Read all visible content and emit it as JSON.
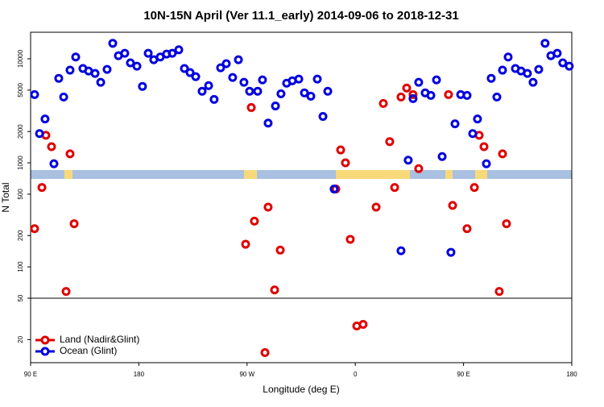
{
  "chart_data": {
    "type": "scatter",
    "title": "10N-15N April (Ver 11.1_early)   2014-09-06 to 2018-12-31",
    "x_label": "Longitude (deg E)",
    "y_label": "N Total",
    "xlim": [
      90,
      540
    ],
    "xticks": [
      {
        "value": 90,
        "label": "90 E"
      },
      180,
      {
        "value": 270,
        "label": "90 W"
      },
      {
        "value": 360,
        "label": "0"
      },
      {
        "value": 450,
        "label": "90 E"
      },
      {
        "value": 540,
        "label": "180"
      }
    ],
    "ylim": [
      12,
      18000
    ],
    "yticks": [
      20,
      50,
      100,
      200,
      500,
      1000,
      2000,
      5000,
      10000
    ],
    "log_y": true,
    "separator_y": 50,
    "legend": "bottom-left",
    "series": [
      {
        "name": "Land (Nadir&Glint)",
        "color": "#e00000",
        "x": [
          93.3,
          99.4,
          102.7,
          107.4,
          119.5,
          122.8,
          126.2,
          268.8,
          273.5,
          276.1,
          287.5,
          292.9,
          297.6,
          284.9,
          343.8,
          347.8,
          351.8,
          355.8,
          361.2,
          366.5,
          377.3,
          383.3,
          388.6,
          392.7,
          398,
          402.7,
          408,
          412.7,
          437.5,
          440.9,
          452.9,
          459,
          463,
          467,
          479.7,
          482.4,
          485.7
        ],
        "values": [
          233,
          580,
          1840,
          1430,
          58,
          1220,
          260,
          165,
          3400,
          275,
          375,
          60,
          145,
          15,
          560,
          1330,
          1000,
          184,
          27,
          28,
          375,
          3720,
          1600,
          580,
          4290,
          5230,
          4530,
          880,
          4530,
          390,
          233,
          580,
          1840,
          1430,
          58,
          1220,
          260
        ]
      },
      {
        "name": "Ocean (Glint)",
        "color": "#0000e0",
        "x": [
          93.3,
          97.4,
          102,
          109.4,
          113.4,
          117.5,
          122.8,
          127.5,
          133.5,
          138.2,
          143.6,
          148.3,
          153.6,
          158.3,
          163,
          168.3,
          173,
          178.4,
          183,
          187.8,
          192.4,
          197.8,
          203.1,
          207.8,
          213.2,
          217.9,
          222.6,
          227.3,
          232.6,
          238,
          242.6,
          248,
          252.7,
          258,
          262.8,
          267.4,
          272.1,
          278.8,
          282.8,
          287.5,
          293.6,
          298.2,
          302.9,
          307.6,
          313,
          317.7,
          323,
          328.4,
          333.1,
          337.1,
          342.4,
          398,
          404,
          408,
          412.7,
          418.1,
          422.8,
          427.5,
          432.2,
          439.5,
          442.9,
          447.6,
          452.9,
          457.6,
          461.6,
          469,
          473,
          477.7,
          482.4,
          487.1,
          493.1,
          497.8,
          503.1,
          507.8,
          512.5,
          517.8,
          522.6,
          527.9,
          532.5,
          537.9
        ],
        "values": [
          4530,
          1910,
          2640,
          980,
          6490,
          4290,
          7775,
          10400,
          8060,
          7630,
          7230,
          5940,
          7900,
          14100,
          10700,
          11300,
          9140,
          8500,
          5430,
          11300,
          9800,
          10400,
          11100,
          11300,
          12200,
          8060,
          7370,
          6730,
          4870,
          5520,
          4070,
          8200,
          8980,
          6610,
          9800,
          5940,
          4870,
          4870,
          6270,
          2410,
          3520,
          4610,
          5830,
          6150,
          6380,
          4700,
          4370,
          6380,
          2790,
          4870,
          560,
          143,
          1060,
          4140,
          5940,
          4700,
          4450,
          6270,
          1150,
          138,
          2370,
          4530,
          4450,
          1910,
          2640,
          980,
          6490,
          4290,
          7775,
          10400,
          8060,
          7630,
          7230,
          5940,
          7900,
          14100,
          10700,
          11300,
          9140,
          8500
        ]
      }
    ]
  }
}
